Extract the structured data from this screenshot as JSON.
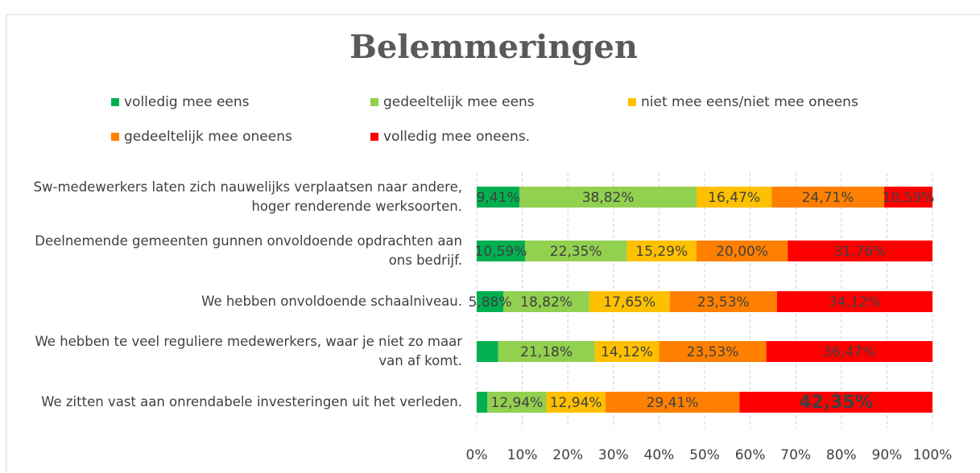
{
  "chart_data": {
    "type": "stacked-bar-horizontal",
    "title": "Belemmeringen",
    "categories": [
      "Sw-medewerkers laten zich nauwelijks verplaatsen naar andere, hoger renderende werksoorten.",
      "Deelnemende gemeenten gunnen onvoldoende opdrachten aan ons bedrijf.",
      "We hebben onvoldoende schaalniveau.",
      "We hebben te veel reguliere medewerkers, waar je niet zo maar van af komt.",
      "We zitten vast aan onrendabele investeringen uit het verleden."
    ],
    "series": [
      {
        "name": "volledig mee eens",
        "color": "#00b050",
        "values": [
          9.41,
          10.59,
          5.88,
          4.71,
          2.35
        ],
        "value_labels": [
          "9,41%",
          "10,59%",
          "5,88%",
          null,
          null
        ]
      },
      {
        "name": "gedeeltelijk mee eens",
        "color": "#92d050",
        "values": [
          38.82,
          22.35,
          18.82,
          21.18,
          12.94
        ],
        "value_labels": [
          "38,82%",
          "22,35%",
          "18,82%",
          "21,18%",
          "12,94%"
        ]
      },
      {
        "name": "niet mee eens/niet mee oneens",
        "color": "#ffc000",
        "values": [
          16.47,
          15.29,
          17.65,
          14.12,
          12.94
        ],
        "value_labels": [
          "16,47%",
          "15,29%",
          "17,65%",
          "14,12%",
          "12,94%"
        ]
      },
      {
        "name": "gedeeltelijk mee oneens",
        "color": "#ff8000",
        "values": [
          24.71,
          20.0,
          23.53,
          23.53,
          29.41
        ],
        "value_labels": [
          "24,71%",
          "20,00%",
          "23,53%",
          "23,53%",
          "29,41%"
        ]
      },
      {
        "name": "volledig mee oneens.",
        "color": "#ff0000",
        "values": [
          10.59,
          31.76,
          34.12,
          36.47,
          42.35
        ],
        "value_labels": [
          "10,59%",
          "31,76%",
          "34,12%",
          "36,47%",
          "42,35%"
        ]
      }
    ],
    "xlim": [
      0,
      100
    ],
    "xticks": [
      {
        "value": 0,
        "label": "0%"
      },
      {
        "value": 10,
        "label": "10%"
      },
      {
        "value": 20,
        "label": "20%"
      },
      {
        "value": 30,
        "label": "30%"
      },
      {
        "value": 40,
        "label": "40%"
      },
      {
        "value": 50,
        "label": "50%"
      },
      {
        "value": 60,
        "label": "60%"
      },
      {
        "value": 70,
        "label": "70%"
      },
      {
        "value": 80,
        "label": "80%"
      },
      {
        "value": 90,
        "label": "90%"
      },
      {
        "value": 100,
        "label": "100%"
      }
    ],
    "grid": true,
    "legend": "top"
  }
}
